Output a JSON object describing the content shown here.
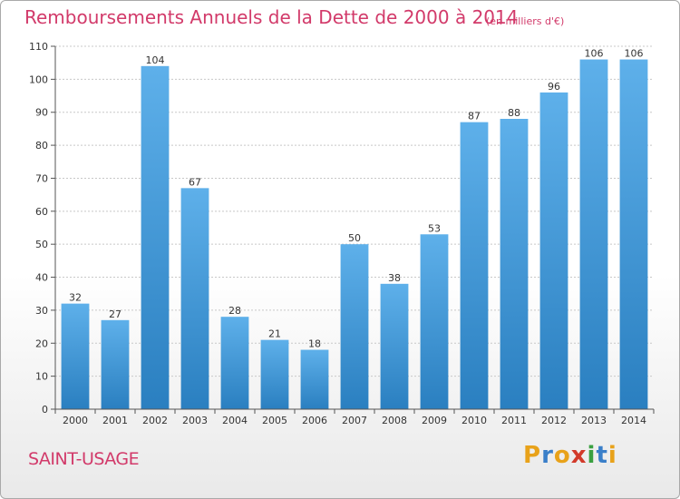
{
  "chart_data": {
    "type": "bar",
    "title": "Remboursements Annuels de la Dette de 2000 à 2014",
    "unit_note": "(en milliers d'€)",
    "categories": [
      "2000",
      "2001",
      "2002",
      "2003",
      "2004",
      "2005",
      "2006",
      "2007",
      "2008",
      "2009",
      "2010",
      "2011",
      "2012",
      "2013",
      "2014"
    ],
    "values": [
      32,
      27,
      104,
      67,
      28,
      21,
      18,
      50,
      38,
      53,
      87,
      88,
      96,
      106,
      106
    ],
    "ylim": [
      0,
      110
    ],
    "yticks": [
      0,
      10,
      20,
      30,
      40,
      50,
      60,
      70,
      80,
      90,
      100,
      110
    ],
    "grid": true,
    "bar_color_light": "#5eb0ea",
    "bar_color_dark": "#2a7fc0"
  },
  "commune": "SAINT-USAGE",
  "logo": {
    "text": "Proxiti",
    "letters": [
      {
        "char": "P",
        "color": "#e8a21a"
      },
      {
        "char": "r",
        "color": "#3a7fc9"
      },
      {
        "char": "o",
        "color": "#e8a21a"
      },
      {
        "char": "x",
        "color": "#d23a2a"
      },
      {
        "char": "i",
        "color": "#3aa040"
      },
      {
        "char": "t",
        "color": "#3a7fc9"
      },
      {
        "char": "i",
        "color": "#e8a21a"
      }
    ]
  },
  "colors": {
    "accent": "#d23a6a",
    "grid": "#c8c8c8"
  }
}
